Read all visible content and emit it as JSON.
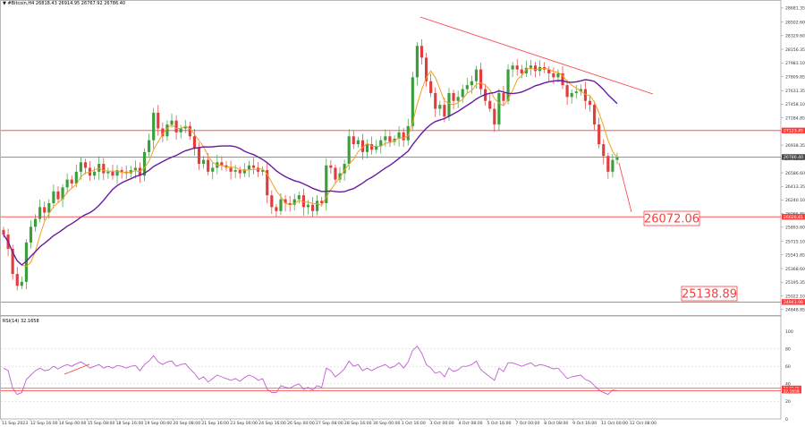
{
  "chart_header": {
    "symbol_line": "#Bitcoin,H4  26818.43 26914.95 26767.92 26786.40"
  },
  "rsi_header": "RSI(14) 32.1658",
  "colors": {
    "bull": "#3a9e3a",
    "bear": "#e23c3c",
    "ma_fast": "#f0a020",
    "ma_slow": "#6a1aa0",
    "level_line": "#ff3b3b",
    "trend_line": "#ff3b3b",
    "current_price_line": "#555555",
    "rsi_line": "#c060d0",
    "grid": "#cfcfcf",
    "axis_text": "#333333"
  },
  "chart_data": [
    {
      "type": "candlestick",
      "symbol": "#Bitcoin",
      "timeframe": "H4",
      "ohlc_current": {
        "open": 26818.43,
        "high": 26914.95,
        "low": 26767.92,
        "close": 26786.4
      },
      "y_ticks": [
        "28681.35",
        "28502.60",
        "28329.60",
        "28156.35",
        "27983.10",
        "27809.85",
        "27631.35",
        "27458.10",
        "27284.85",
        "27111.60",
        "26938.35",
        "26765.10",
        "26586.60",
        "26413.35",
        "26240.10",
        "26066.85",
        "25893.60",
        "25715.10",
        "25541.85",
        "25368.60",
        "25195.35",
        "25022.10",
        "24848.85"
      ],
      "ylim": [
        24800,
        28760
      ],
      "x_ticks": [
        "11 Sep 2023",
        "12 Sep 16:00",
        "14 Sep 00:00",
        "15 Sep 08:00",
        "18 Sep 16:00",
        "19 Sep 00:00",
        "20 Sep 08:00",
        "21 Sep 16:00",
        "23 Sep 00:00",
        "24 Sep 16:00",
        "26 Sep 00:00",
        "27 Sep 08:00",
        "28 Sep 16:00",
        "30 Sep 00:00",
        "1 Oct 16:00",
        "3 Oct 00:00",
        "4 Oct 08:00",
        "5 Oct 16:00",
        "7 Oct 00:00",
        "8 Oct 08:00",
        "9 Oct 16:00",
        "11 Oct 00:00",
        "12 Oct 08:00"
      ],
      "levels": [
        {
          "price": 27123.45,
          "label": "27123.45"
        },
        {
          "price": 26786.4,
          "label": "26786.40",
          "current": true
        },
        {
          "price": 26026.81,
          "label": "26026.81"
        },
        {
          "price": 24943.98,
          "label": "24943.98"
        }
      ],
      "targets": [
        {
          "price": 26072.06,
          "label": "26072.06"
        },
        {
          "price": 25138.89,
          "label": "25138.89"
        }
      ],
      "closes": [
        25800,
        25620,
        25300,
        25150,
        25200,
        25700,
        25900,
        26000,
        26150,
        26080,
        26200,
        26350,
        26250,
        26400,
        26500,
        26450,
        26600,
        26720,
        26650,
        26550,
        26600,
        26700,
        26580,
        26600,
        26550,
        26620,
        26600,
        26580,
        26620,
        26650,
        26550,
        26850,
        27000,
        27350,
        27150,
        27050,
        27200,
        27250,
        27100,
        27150,
        27180,
        27050,
        26900,
        26700,
        26750,
        26600,
        26650,
        26720,
        26680,
        26650,
        26600,
        26620,
        26580,
        26630,
        26680,
        26650,
        26600,
        26620,
        26300,
        26150,
        26100,
        26250,
        26200,
        26180,
        26250,
        26300,
        26150,
        26180,
        26100,
        26230,
        26200,
        26680,
        26650,
        26500,
        26580,
        26700,
        27050,
        26950,
        27000,
        26850,
        26950,
        26880,
        26930,
        27000,
        27050,
        26980,
        27020,
        27100,
        27000,
        27180,
        27800,
        28200,
        28050,
        27750,
        27600,
        27400,
        27450,
        27300,
        27600,
        27500,
        27550,
        27650,
        27700,
        27750,
        27900,
        27650,
        27500,
        27400,
        27200,
        27600,
        27500,
        27900,
        27950,
        27900,
        27850,
        27920,
        27950,
        27880,
        27930,
        27900,
        27850,
        27800,
        27850,
        27700,
        27550,
        27600,
        27620,
        27650,
        27500,
        27450,
        27200,
        26950,
        26800,
        26600,
        26750,
        26786
      ]
    },
    {
      "type": "line",
      "indicator": "RSI(14)",
      "value": 32.1658,
      "ylim": [
        0,
        100
      ],
      "y_ticks": [
        "100",
        "80",
        "60",
        "40",
        "20",
        "0"
      ],
      "levels_labels": [
        "34.9146",
        "32.1658"
      ],
      "values": [
        58,
        55,
        35,
        28,
        30,
        45,
        50,
        55,
        58,
        55,
        56,
        60,
        57,
        60,
        62,
        60,
        63,
        65,
        62,
        58,
        60,
        62,
        58,
        60,
        58,
        61,
        60,
        58,
        60,
        61,
        55,
        62,
        66,
        72,
        65,
        62,
        65,
        66,
        60,
        62,
        63,
        57,
        52,
        45,
        48,
        42,
        46,
        50,
        48,
        46,
        44,
        46,
        43,
        47,
        50,
        48,
        44,
        46,
        34,
        30,
        30,
        38,
        36,
        35,
        38,
        40,
        34,
        36,
        33,
        38,
        36,
        58,
        55,
        48,
        52,
        57,
        66,
        60,
        62,
        55,
        58,
        55,
        58,
        60,
        62,
        58,
        60,
        64,
        58,
        65,
        78,
        83,
        75,
        62,
        58,
        52,
        54,
        48,
        58,
        54,
        56,
        60,
        60,
        62,
        66,
        56,
        52,
        48,
        44,
        58,
        54,
        64,
        64,
        62,
        60,
        62,
        64,
        60,
        62,
        61,
        59,
        57,
        58,
        52,
        46,
        48,
        49,
        50,
        45,
        43,
        38,
        33,
        30,
        28,
        33,
        32.1658
      ]
    }
  ]
}
